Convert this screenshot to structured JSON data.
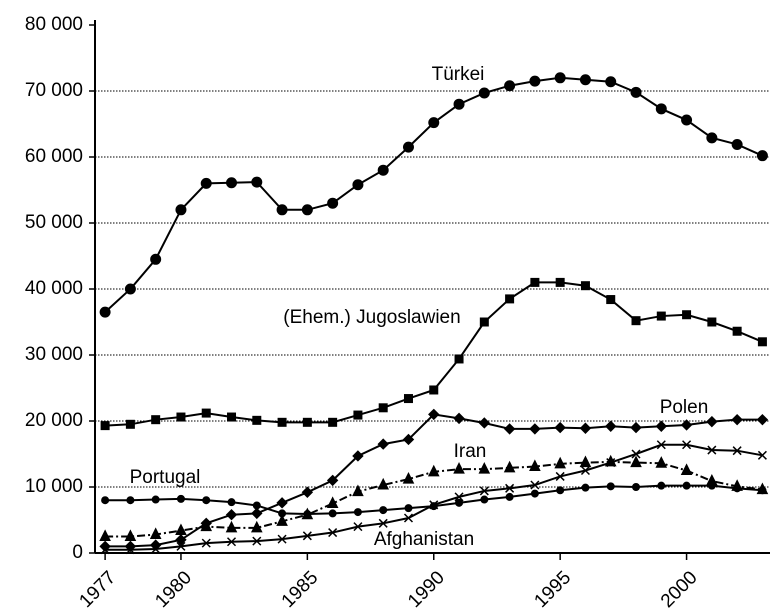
{
  "chart_data": {
    "type": "line",
    "x": [
      1977,
      1978,
      1979,
      1980,
      1981,
      1982,
      1983,
      1984,
      1985,
      1986,
      1987,
      1988,
      1989,
      1990,
      1991,
      1992,
      1993,
      1994,
      1995,
      1996,
      1997,
      1998,
      1999,
      2000,
      2001,
      2002,
      2003
    ],
    "xlim": [
      1976.6,
      2003.3
    ],
    "xticks": [
      1977,
      1980,
      1985,
      1990,
      1995,
      2000
    ],
    "ylim": [
      0,
      80000
    ],
    "yticks": [
      {
        "value": 0,
        "label": "0"
      },
      {
        "value": 10000,
        "label": "10 000"
      },
      {
        "value": 20000,
        "label": "20 000"
      },
      {
        "value": 30000,
        "label": "30 000"
      },
      {
        "value": 40000,
        "label": "40 000"
      },
      {
        "value": 50000,
        "label": "50 000"
      },
      {
        "value": 60000,
        "label": "60 000"
      },
      {
        "value": 70000,
        "label": "70 000"
      },
      {
        "value": 80000,
        "label": "80 000"
      }
    ],
    "grid": true,
    "series": [
      {
        "name": "Türkei",
        "color": "#000000",
        "marker": "circle",
        "dash": "solid",
        "values": [
          36500,
          40000,
          44500,
          52000,
          56000,
          56100,
          56200,
          52000,
          52000,
          53000,
          55800,
          58000,
          61500,
          65200,
          68000,
          69700,
          70800,
          71500,
          72000,
          71700,
          71400,
          69800,
          67300,
          65600,
          62900,
          61900,
          60200
        ]
      },
      {
        "name": "(Ehem.) Jugoslawien",
        "color": "#000000",
        "marker": "square",
        "dash": "solid",
        "values": [
          19300,
          19500,
          20200,
          20600,
          21200,
          20600,
          20100,
          19800,
          19800,
          19800,
          20900,
          22000,
          23400,
          24700,
          29400,
          35000,
          38500,
          41000,
          41000,
          40500,
          38400,
          35200,
          35900,
          36100,
          35000,
          33600,
          32000
        ]
      },
      {
        "name": "Polen",
        "color": "#000000",
        "marker": "diamond",
        "dash": "solid",
        "values": [
          1000,
          1000,
          1200,
          2000,
          4500,
          5800,
          6000,
          7600,
          9200,
          11000,
          14700,
          16500,
          17200,
          21000,
          20400,
          19700,
          18800,
          18800,
          19000,
          18900,
          19200,
          19000,
          19200,
          19400,
          19900,
          20200,
          20200
        ]
      },
      {
        "name": "Iran",
        "color": "#000000",
        "marker": "triangle",
        "dash": "dashdot",
        "values": [
          2500,
          2500,
          2800,
          3400,
          4000,
          3800,
          3800,
          4800,
          5800,
          7500,
          9300,
          10300,
          11200,
          12300,
          12700,
          12700,
          12900,
          13100,
          13500,
          13700,
          13800,
          13700,
          13600,
          12500,
          10900,
          10100,
          9600
        ]
      },
      {
        "name": "Portugal",
        "color": "#000000",
        "marker": "smallcircle",
        "dash": "solid",
        "values": [
          8000,
          8000,
          8100,
          8200,
          8000,
          7700,
          7200,
          6000,
          5900,
          6000,
          6200,
          6500,
          6800,
          7100,
          7600,
          8100,
          8500,
          9000,
          9500,
          9900,
          10100,
          10000,
          10200,
          10200,
          10200,
          9800,
          9500
        ]
      },
      {
        "name": "Afghanistan",
        "color": "#000000",
        "marker": "cross",
        "dash": "solid",
        "values": [
          500,
          500,
          600,
          1000,
          1500,
          1700,
          1800,
          2100,
          2600,
          3100,
          4000,
          4500,
          5300,
          7300,
          8500,
          9400,
          9800,
          10300,
          11600,
          12500,
          13700,
          15000,
          16400,
          16400,
          15600,
          15500,
          14800
        ]
      }
    ]
  }
}
